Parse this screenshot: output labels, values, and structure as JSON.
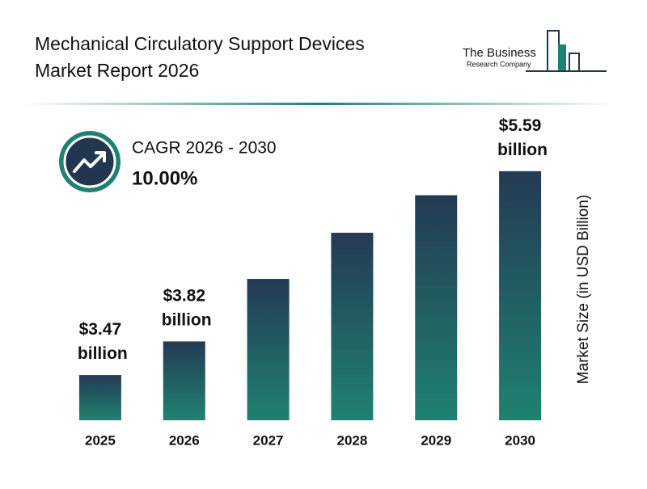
{
  "chart_data": {
    "type": "bar",
    "title": [
      "Mechanical Circulatory Support Devices",
      "Market Report 2026"
    ],
    "logo": [
      "The Business",
      "Research Company"
    ],
    "cagr_label": "CAGR 2026 - 2030",
    "cagr_value": "10.00%",
    "y_label": "Market Size (in USD Billion)",
    "categories": [
      "2025",
      "2026",
      "2027",
      "2028",
      "2029",
      "2030"
    ],
    "values": [
      3.47,
      3.82,
      4.47,
      4.95,
      5.34,
      5.59
    ],
    "value_labels": [
      "$3.47 billion",
      "$3.82 billion",
      null,
      null,
      null,
      "$5.59 billion"
    ],
    "ylim": [
      3,
      6
    ],
    "colors": [
      "#243a54",
      "#1f8270"
    ]
  }
}
